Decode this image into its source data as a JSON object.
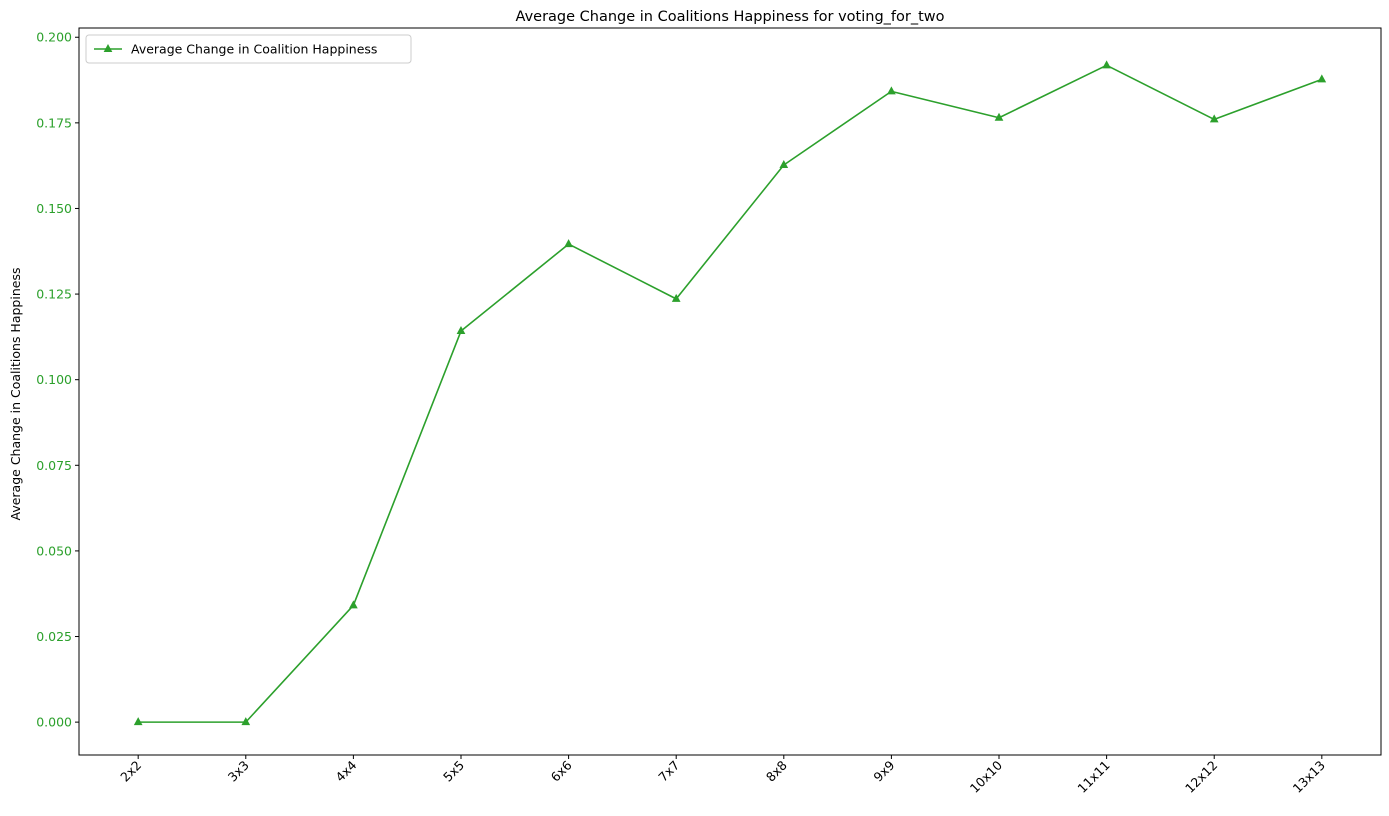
{
  "chart_data": {
    "type": "line",
    "title": "Average Change in Coalitions Happiness for voting_for_two",
    "xlabel": "",
    "ylabel": "Average Change in Coalitions Happiness",
    "categories": [
      "2x2",
      "3x3",
      "4x4",
      "5x5",
      "6x6",
      "7x7",
      "8x8",
      "9x9",
      "10x10",
      "11x11",
      "12x12",
      "13x13"
    ],
    "series": [
      {
        "name": "Average Change in Coalition Happiness",
        "color": "#2ca02c",
        "marker": "triangle-up",
        "values": [
          0.0,
          0.0,
          0.0341,
          0.1142,
          0.1396,
          0.1236,
          0.1627,
          0.1842,
          0.1765,
          0.1918,
          0.176,
          0.1877
        ]
      }
    ],
    "ylim": [
      -0.0096,
      0.2027
    ],
    "yticks": [
      "0.000",
      "0.025",
      "0.050",
      "0.075",
      "0.100",
      "0.125",
      "0.150",
      "0.175",
      "0.200"
    ],
    "ytick_color": "#2ca02c",
    "legend_position": "top-left",
    "grid": false
  }
}
